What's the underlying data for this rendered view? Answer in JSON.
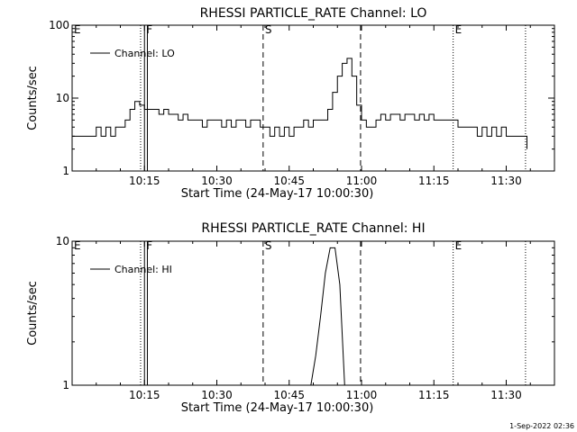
{
  "timestamp": "1-Sep-2022 02:36",
  "chart_data": [
    {
      "type": "line",
      "title": "RHESSI PARTICLE_RATE Channel: LO",
      "xlabel": "Start Time (24-May-17 10:00:30)",
      "ylabel": "Counts/sec",
      "yscale": "log",
      "ylim": [
        1,
        100
      ],
      "xlim_minutes": [
        0,
        100
      ],
      "x_tick_labels": [
        "10:15",
        "10:30",
        "10:45",
        "11:00",
        "11:15",
        "11:30"
      ],
      "x_tick_minutes": [
        15,
        30,
        45,
        60,
        75,
        90
      ],
      "y_tick_labels": [
        "1",
        "10",
        "100"
      ],
      "y_tick_values": [
        1,
        10,
        100
      ],
      "legend": {
        "label": "Channel: LO",
        "placement": "top-left"
      },
      "markers": [
        {
          "label": "E",
          "minute": 0,
          "style": "dotted"
        },
        {
          "label": "",
          "minute": 14.2,
          "style": "dotted"
        },
        {
          "label": "F",
          "minute": 15.0,
          "style": "solid"
        },
        {
          "label": "",
          "minute": 15.6,
          "style": "solid"
        },
        {
          "label": "S",
          "minute": 39.6,
          "style": "dashed"
        },
        {
          "label": "",
          "minute": 59.8,
          "style": "dashed"
        },
        {
          "label": "E",
          "minute": 79.0,
          "style": "dotted"
        },
        {
          "label": "",
          "minute": 94.0,
          "style": "dotted"
        }
      ],
      "series": [
        {
          "x": [
            0,
            1,
            2,
            3,
            4,
            5,
            6,
            7,
            8,
            9,
            10,
            11,
            12,
            13,
            14,
            15,
            16,
            17,
            18,
            19,
            20,
            21,
            22,
            23,
            24,
            25,
            26,
            27,
            28,
            29,
            30,
            31,
            32,
            33,
            34,
            35,
            36,
            37,
            38,
            39,
            40,
            41,
            42,
            43,
            44,
            45,
            46,
            47,
            48,
            49,
            50,
            51,
            52,
            53,
            54,
            55,
            56,
            57,
            58,
            59,
            60,
            61,
            62,
            63,
            64,
            65,
            66,
            67,
            68,
            69,
            70,
            71,
            72,
            73,
            74,
            75,
            76,
            77,
            78,
            79,
            80,
            81,
            82,
            83,
            84,
            85,
            86,
            87,
            88,
            89,
            90,
            91,
            92,
            93,
            94,
            94.3
          ],
          "y": [
            3,
            3,
            3,
            3,
            3,
            4,
            3,
            4,
            3,
            4,
            4,
            5,
            7,
            9,
            8,
            7,
            7,
            7,
            6,
            7,
            6,
            6,
            5,
            6,
            5,
            5,
            5,
            4,
            5,
            5,
            5,
            4,
            5,
            4,
            5,
            5,
            4,
            5,
            5,
            4,
            4,
            3,
            4,
            3,
            4,
            3,
            4,
            4,
            5,
            4,
            5,
            5,
            5,
            7,
            12,
            20,
            30,
            35,
            20,
            8,
            5,
            4,
            4,
            5,
            6,
            5,
            6,
            6,
            5,
            6,
            6,
            5,
            6,
            5,
            6,
            5,
            5,
            5,
            5,
            5,
            4,
            4,
            4,
            4,
            3,
            4,
            3,
            4,
            3,
            4,
            3,
            3,
            3,
            3,
            3,
            2
          ]
        }
      ]
    },
    {
      "type": "line",
      "title": "RHESSI PARTICLE_RATE Channel: HI",
      "xlabel": "Start Time (24-May-17 10:00:30)",
      "ylabel": "Counts/sec",
      "yscale": "log",
      "ylim": [
        1,
        10
      ],
      "xlim_minutes": [
        0,
        100
      ],
      "x_tick_labels": [
        "10:15",
        "10:30",
        "10:45",
        "11:00",
        "11:15",
        "11:30"
      ],
      "x_tick_minutes": [
        15,
        30,
        45,
        60,
        75,
        90
      ],
      "y_tick_labels": [
        "1",
        "10"
      ],
      "y_tick_values": [
        1,
        10
      ],
      "legend": {
        "label": "Channel: HI",
        "placement": "top-left"
      },
      "markers": [
        {
          "label": "E",
          "minute": 0,
          "style": "dotted"
        },
        {
          "label": "",
          "minute": 14.2,
          "style": "dotted"
        },
        {
          "label": "F",
          "minute": 15.0,
          "style": "solid"
        },
        {
          "label": "",
          "minute": 15.6,
          "style": "solid"
        },
        {
          "label": "S",
          "minute": 39.6,
          "style": "dashed"
        },
        {
          "label": "",
          "minute": 59.8,
          "style": "dashed"
        },
        {
          "label": "E",
          "minute": 79.0,
          "style": "dotted"
        },
        {
          "label": "",
          "minute": 94.0,
          "style": "dotted"
        }
      ],
      "series": [
        {
          "x": [
            49.5,
            50.5,
            51.5,
            52.5,
            53.5,
            54.5,
            55.5,
            56.5
          ],
          "y": [
            1,
            1.6,
            3,
            6,
            9,
            9,
            5,
            1
          ]
        }
      ]
    }
  ]
}
